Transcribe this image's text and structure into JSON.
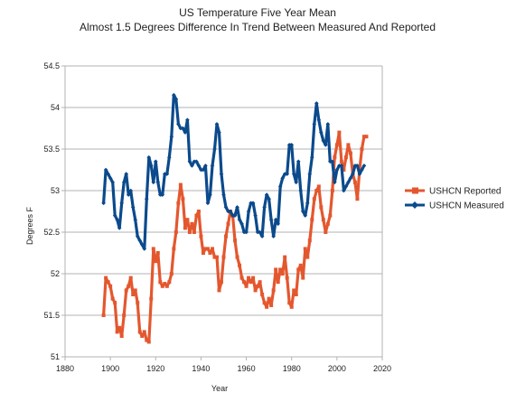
{
  "chart_data": {
    "type": "line",
    "title": "US Temperature Five Year Mean",
    "subtitle": "Almost 1.5 Degrees Difference In Trend Between Measured And Reported",
    "xlabel": "Year",
    "ylabel": "Degrees F",
    "xlim": [
      1880,
      2020
    ],
    "ylim": [
      51,
      54.5
    ],
    "xticks": [
      1880,
      1900,
      1920,
      1940,
      1960,
      1980,
      2000,
      2020
    ],
    "yticks": [
      51,
      51.5,
      52,
      52.5,
      53,
      53.5,
      54,
      54.5
    ],
    "xtick_labels": [
      "1880",
      "1900",
      "1920",
      "1940",
      "1960",
      "1980",
      "2000",
      "2020"
    ],
    "ytick_labels": [
      "51",
      "51.5",
      "52",
      "52.5",
      "53",
      "53.5",
      "54",
      "54.5"
    ],
    "grid": "horizontal",
    "legend_position": "right",
    "series": [
      {
        "name": "USHCN Reported",
        "color": "#e4572e",
        "marker": "square",
        "x": [
          1897,
          1898,
          1899,
          1900,
          1901,
          1902,
          1903,
          1904,
          1905,
          1906,
          1907,
          1908,
          1909,
          1910,
          1911,
          1912,
          1913,
          1914,
          1915,
          1916,
          1917,
          1918,
          1919,
          1920,
          1921,
          1922,
          1923,
          1924,
          1925,
          1926,
          1927,
          1928,
          1929,
          1930,
          1931,
          1932,
          1933,
          1934,
          1935,
          1936,
          1937,
          1938,
          1939,
          1940,
          1941,
          1942,
          1943,
          1944,
          1945,
          1946,
          1947,
          1948,
          1949,
          1950,
          1951,
          1952,
          1953,
          1954,
          1955,
          1956,
          1957,
          1958,
          1959,
          1960,
          1961,
          1962,
          1963,
          1964,
          1965,
          1966,
          1967,
          1968,
          1969,
          1970,
          1971,
          1972,
          1973,
          1974,
          1975,
          1976,
          1977,
          1978,
          1979,
          1980,
          1981,
          1982,
          1983,
          1984,
          1985,
          1986,
          1987,
          1988,
          1989,
          1990,
          1991,
          1992,
          1993,
          1994,
          1995,
          1996,
          1997,
          1998,
          1999,
          2000,
          2001,
          2002,
          2003,
          2004,
          2005,
          2006,
          2007,
          2008,
          2009,
          2010,
          2011,
          2012,
          2013
        ],
        "values": [
          51.5,
          51.95,
          51.9,
          51.85,
          51.7,
          51.65,
          51.3,
          51.35,
          51.25,
          51.5,
          51.8,
          51.85,
          51.95,
          51.75,
          51.8,
          51.65,
          51.3,
          51.25,
          51.3,
          51.2,
          51.18,
          51.7,
          52.3,
          52.15,
          52.25,
          51.9,
          51.85,
          51.88,
          51.85,
          51.9,
          52.0,
          52.3,
          52.5,
          52.85,
          53.07,
          52.9,
          52.55,
          52.65,
          52.5,
          52.6,
          52.5,
          52.7,
          52.75,
          52.45,
          52.25,
          52.3,
          52.3,
          52.25,
          52.3,
          52.2,
          52.2,
          51.8,
          51.9,
          52.2,
          52.45,
          52.6,
          52.75,
          52.7,
          52.4,
          52.2,
          52.1,
          51.95,
          51.9,
          51.85,
          51.95,
          51.9,
          51.95,
          51.8,
          51.85,
          51.9,
          51.75,
          51.65,
          51.6,
          51.7,
          51.62,
          51.8,
          52.05,
          51.9,
          52.05,
          52.0,
          52.2,
          51.95,
          51.65,
          51.6,
          51.8,
          51.75,
          52.05,
          52.1,
          51.95,
          52.3,
          52.2,
          52.4,
          52.65,
          52.9,
          53.0,
          53.05,
          52.8,
          52.65,
          52.5,
          52.6,
          52.7,
          53.0,
          53.4,
          53.55,
          53.7,
          53.35,
          53.25,
          53.4,
          53.55,
          53.45,
          53.2,
          53.1,
          52.9,
          53.25,
          53.5,
          53.65,
          53.65
        ]
      },
      {
        "name": "USHCN Measured",
        "color": "#0b4a8c",
        "marker": "diamond",
        "x": [
          1897,
          1898,
          1899,
          1900,
          1901,
          1902,
          1903,
          1904,
          1905,
          1906,
          1907,
          1908,
          1909,
          1910,
          1911,
          1912,
          1913,
          1914,
          1915,
          1916,
          1917,
          1918,
          1919,
          1920,
          1921,
          1922,
          1923,
          1924,
          1925,
          1926,
          1927,
          1928,
          1929,
          1930,
          1931,
          1932,
          1933,
          1934,
          1935,
          1936,
          1937,
          1938,
          1939,
          1940,
          1941,
          1942,
          1943,
          1944,
          1945,
          1946,
          1947,
          1948,
          1949,
          1950,
          1951,
          1952,
          1953,
          1954,
          1955,
          1956,
          1957,
          1958,
          1959,
          1960,
          1961,
          1962,
          1963,
          1964,
          1965,
          1966,
          1967,
          1968,
          1969,
          1970,
          1971,
          1972,
          1973,
          1974,
          1975,
          1976,
          1977,
          1978,
          1979,
          1980,
          1981,
          1982,
          1983,
          1984,
          1985,
          1986,
          1987,
          1988,
          1989,
          1990,
          1991,
          1992,
          1993,
          1994,
          1995,
          1996,
          1997,
          1998,
          1999,
          2000,
          2001,
          2002,
          2003,
          2004,
          2005,
          2006,
          2007,
          2008,
          2009,
          2010,
          2011,
          2012
        ],
        "values": [
          52.85,
          53.25,
          53.2,
          53.15,
          53.1,
          52.7,
          52.65,
          52.55,
          52.85,
          53.1,
          53.2,
          52.95,
          53.0,
          52.8,
          52.65,
          52.45,
          52.4,
          52.35,
          52.3,
          52.9,
          53.4,
          53.3,
          53.1,
          53.35,
          53.1,
          52.95,
          52.95,
          53.2,
          53.2,
          53.4,
          53.65,
          54.15,
          54.1,
          53.8,
          53.75,
          53.75,
          53.7,
          53.85,
          53.35,
          53.3,
          53.35,
          53.35,
          53.3,
          53.25,
          53.25,
          53.3,
          52.85,
          52.95,
          53.3,
          53.5,
          53.8,
          53.7,
          53.2,
          52.95,
          52.8,
          52.75,
          52.75,
          52.7,
          52.7,
          52.8,
          52.65,
          52.6,
          52.5,
          52.5,
          52.75,
          52.85,
          52.85,
          52.7,
          52.5,
          52.5,
          52.45,
          52.8,
          52.95,
          52.9,
          52.65,
          52.45,
          52.65,
          52.6,
          53.05,
          53.15,
          53.2,
          53.2,
          53.55,
          53.55,
          53.2,
          53.1,
          53.35,
          53.0,
          52.75,
          52.7,
          52.85,
          53.2,
          53.4,
          53.8,
          54.05,
          53.85,
          53.7,
          53.6,
          53.55,
          53.8,
          53.35,
          53.35,
          53.1,
          53.25,
          53.3,
          53.3,
          53.0,
          53.05,
          53.1,
          53.15,
          53.2,
          53.3,
          53.3,
          53.2,
          53.25,
          53.3
        ]
      }
    ]
  }
}
